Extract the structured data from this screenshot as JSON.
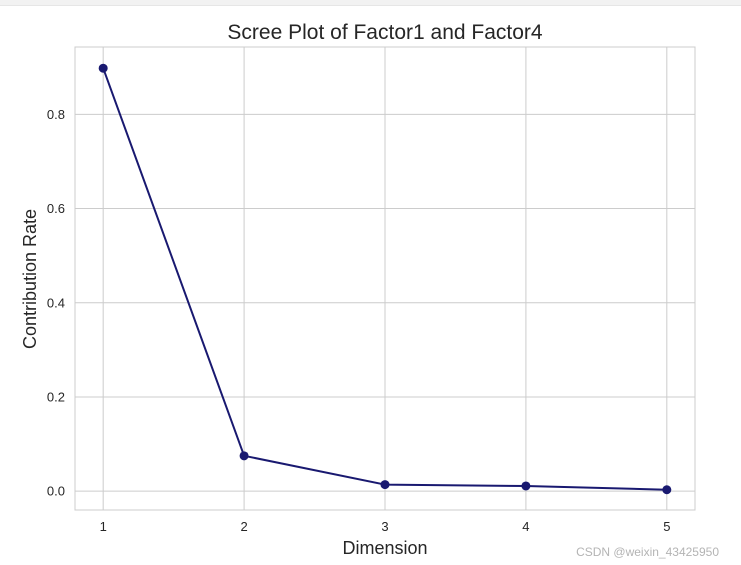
{
  "chart_data": {
    "type": "line",
    "title": "Scree Plot of Factor1 and Factor4",
    "xlabel": "Dimension",
    "ylabel": "Contribution Rate",
    "x": [
      1,
      2,
      3,
      4,
      5
    ],
    "series": [
      {
        "values": [
          0.898,
          0.075,
          0.014,
          0.011,
          0.003
        ]
      }
    ],
    "xlim": [
      0.8,
      5.2
    ],
    "ylim": [
      -0.04,
      0.943
    ],
    "xticks": [
      1,
      2,
      3,
      4,
      5
    ],
    "yticks": [
      0.0,
      0.2,
      0.4,
      0.6,
      0.8
    ],
    "ytick_labels": [
      "0.0",
      "0.2",
      "0.4",
      "0.6",
      "0.8"
    ],
    "grid": true,
    "line_color": "#191970",
    "marker": "circle"
  },
  "watermark": "CSDN @weixin_43425950"
}
